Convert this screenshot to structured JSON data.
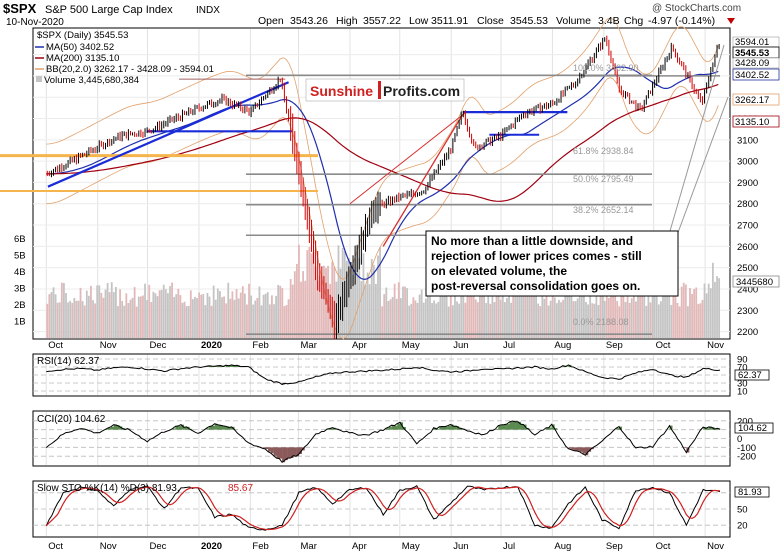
{
  "header": {
    "symbol": "$SPX",
    "name": "S&P 500 Large Cap Index",
    "exchange": "INDX",
    "date": "10-Nov-2020",
    "open_label": "Open",
    "open": "3543.26",
    "high_label": "High",
    "high": "3557.22",
    "low_label": "Low",
    "low": "3511.91",
    "close_label": "Close",
    "close": "3545.53",
    "volume_label": "Volume",
    "volume": "3.4B",
    "chg_label": "Chg",
    "chg": "-4.97 (-0.14%)",
    "watermark": "@ StockCharts.com"
  },
  "legend": {
    "price": "$SPX (Daily) 3545.53",
    "ma50": "MA(50) 3402.52",
    "ma200": "MA(200) 3135.10",
    "bb": "BB(20,2.0) 3262.17 - 3428.09 - 3594.01",
    "volume": "Volume 3,445,680,384"
  },
  "logo": {
    "part1": "Sunshine",
    "part2": "Profits.com"
  },
  "annotation": [
    "No more than a little downside, and",
    "rejection of lower prices comes - still",
    "on elevated volume, the",
    "post-reversal consolidation goes on."
  ],
  "fib_labels": [
    "100.0% 3402.90",
    "61.8% 2938.84",
    "50.0% 2795.49",
    "38.2% 2652.14",
    "0.0% 2188.08"
  ],
  "right_price_labels": [
    "3594.01",
    "3545.53",
    "3428.09",
    "3402.52",
    "3262.17",
    "3135.10"
  ],
  "volume_tag": "3445680",
  "colors": {
    "price_up": "#000000",
    "price_down": "#d00000",
    "ma50": "#1f2fae",
    "ma200": "#a00010",
    "bb": "#e2a06a",
    "volume": "#c4c4c4",
    "trend_blue": "#1a2cd8",
    "trend_red": "#d83030",
    "support_orange": "#f6b44c",
    "rsi_line": "#000000",
    "osc_fill_up": "#5a8a50",
    "osc_fill_down": "#8a5a5a",
    "stoch_k": "#000000",
    "stoch_d": "#d02020",
    "right_tag_blue": "#1e2f9e"
  },
  "chart_data": [
    {
      "type": "candlestick",
      "title": "$SPX S&P 500 Large Cap Index INDX",
      "x_ticks": [
        "Oct",
        "Nov",
        "Dec",
        "2020",
        "Feb",
        "Mar",
        "Apr",
        "May",
        "Jun",
        "Jul",
        "Aug",
        "Sep",
        "Oct",
        "Nov"
      ],
      "y_ticks": [
        2200,
        2300,
        2400,
        2500,
        2600,
        2700,
        2800,
        2900,
        3000,
        3100,
        3200,
        3300,
        3400,
        3500
      ],
      "ylim": [
        2170,
        3620
      ],
      "close_path": [
        [
          "2019-10-01",
          2940
        ],
        [
          "2019-10-15",
          2995
        ],
        [
          "2019-11-01",
          3065
        ],
        [
          "2019-11-15",
          3120
        ],
        [
          "2019-12-01",
          3140
        ],
        [
          "2019-12-15",
          3190
        ],
        [
          "2020-01-01",
          3250
        ],
        [
          "2020-01-15",
          3290
        ],
        [
          "2020-02-01",
          3230
        ],
        [
          "2020-02-19",
          3386
        ],
        [
          "2020-03-01",
          2960
        ],
        [
          "2020-03-12",
          2480
        ],
        [
          "2020-03-23",
          2237
        ],
        [
          "2020-04-01",
          2470
        ],
        [
          "2020-04-15",
          2780
        ],
        [
          "2020-05-01",
          2830
        ],
        [
          "2020-05-15",
          2860
        ],
        [
          "2020-06-01",
          3060
        ],
        [
          "2020-06-08",
          3232
        ],
        [
          "2020-06-15",
          3060
        ],
        [
          "2020-07-01",
          3120
        ],
        [
          "2020-07-15",
          3225
        ],
        [
          "2020-08-01",
          3270
        ],
        [
          "2020-08-15",
          3370
        ],
        [
          "2020-09-02",
          3580
        ],
        [
          "2020-09-10",
          3340
        ],
        [
          "2020-09-23",
          3237
        ],
        [
          "2020-10-12",
          3535
        ],
        [
          "2020-10-30",
          3270
        ],
        [
          "2020-11-09",
          3550
        ],
        [
          "2020-11-10",
          3545.53
        ]
      ],
      "series": [
        {
          "name": "MA(50)",
          "value": 3402.52
        },
        {
          "name": "MA(200)",
          "value": 3135.1
        },
        {
          "name": "BB(20,2.0)",
          "values": [
            3262.17,
            3428.09,
            3594.01
          ]
        }
      ],
      "fibonacci": [
        {
          "level": "100.0%",
          "value": 3402.9
        },
        {
          "level": "61.8%",
          "value": 2938.84
        },
        {
          "level": "50.0%",
          "value": 2795.49
        },
        {
          "level": "38.2%",
          "value": 2652.14
        },
        {
          "level": "0.0%",
          "value": 2188.08
        }
      ]
    },
    {
      "type": "bar",
      "title": "Volume",
      "y_ticks": [
        "1B",
        "2B",
        "3B",
        "4B",
        "5B",
        "6B"
      ],
      "last_value": 3445680384
    },
    {
      "type": "line",
      "title": "RSI(14) 62.37",
      "y_ticks": [
        90,
        70,
        50,
        30,
        10
      ],
      "last_value": 62.37,
      "values": [
        60,
        64,
        66,
        62,
        68,
        70,
        65,
        60,
        66,
        70,
        72,
        74,
        70,
        40,
        28,
        32,
        45,
        55,
        58,
        60,
        62,
        65,
        70,
        62,
        58,
        60,
        66,
        64,
        68,
        70,
        65,
        75,
        58,
        44,
        40,
        55,
        65,
        50,
        44,
        66,
        62.37
      ]
    },
    {
      "type": "line",
      "title": "CCI(20) 104.62",
      "y_ticks": [
        200,
        100,
        -200
      ],
      "last_value": 104.62,
      "values": [
        -100,
        50,
        120,
        60,
        150,
        90,
        -30,
        80,
        150,
        60,
        170,
        120,
        -50,
        -120,
        -260,
        -180,
        50,
        130,
        60,
        40,
        100,
        180,
        -60,
        110,
        160,
        90,
        40,
        160,
        200,
        40,
        150,
        -120,
        -180,
        -30,
        140,
        -110,
        -90,
        140,
        -150,
        130,
        104.62
      ]
    },
    {
      "type": "line",
      "title": "Slow STO %K(14) %D(3) 81.93, 85.67",
      "y_ticks": [
        80,
        50,
        20
      ],
      "series": [
        {
          "name": "%K(14)",
          "last": 81.93
        },
        {
          "name": "%D(3)",
          "last": 85.67
        }
      ],
      "values": [
        20,
        80,
        90,
        85,
        55,
        88,
        92,
        50,
        90,
        88,
        35,
        40,
        15,
        12,
        20,
        80,
        90,
        60,
        85,
        90,
        40,
        85,
        92,
        30,
        60,
        92,
        85,
        90,
        92,
        20,
        15,
        60,
        90,
        30,
        15,
        85,
        90,
        80,
        20,
        85,
        81.93
      ]
    }
  ],
  "rsi": {
    "label": "RSI(14) 62.37",
    "value": "62.37",
    "ticks": [
      "90",
      "70",
      "50",
      "30",
      "10"
    ]
  },
  "cci": {
    "label": "CCI(20) 104.62",
    "value": "104.62",
    "ticks": [
      "200",
      "100",
      "-200"
    ]
  },
  "sto": {
    "label_prefix": "Slow STO %K(14) %D(3) 81.93,",
    "label_d": "85.67",
    "value": "81.93",
    "ticks": [
      "80",
      "50",
      "20"
    ]
  },
  "volume_axis": [
    "6B",
    "5B",
    "4B",
    "3B",
    "2B",
    "1B"
  ]
}
